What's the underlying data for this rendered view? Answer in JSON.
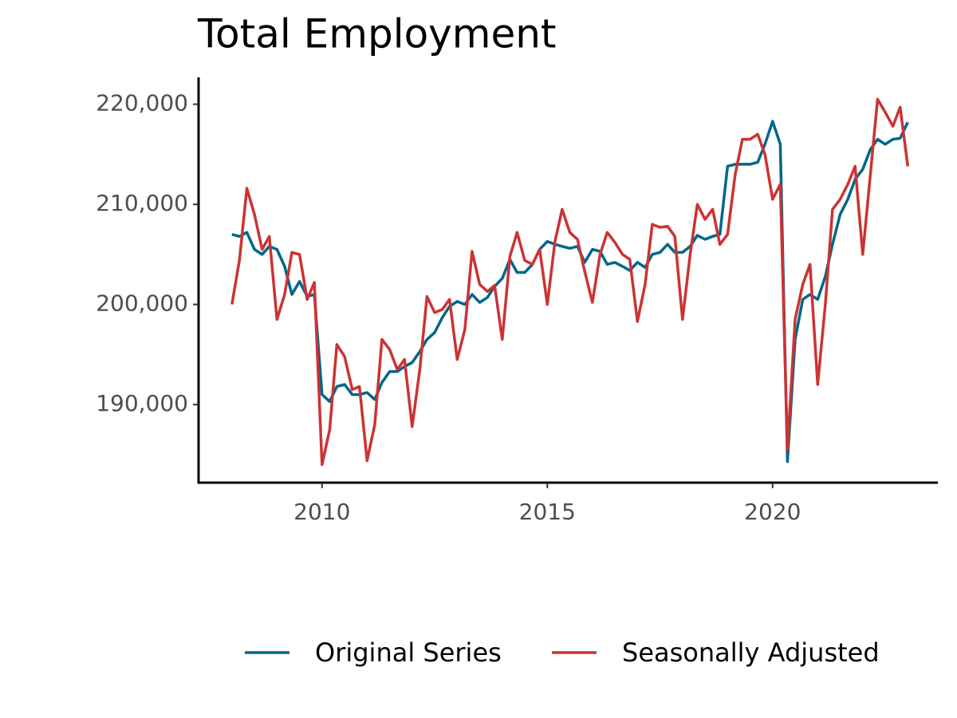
{
  "chart_data": {
    "type": "line",
    "title": "Total Employment",
    "x": [
      2008,
      2008.17,
      2008.33,
      2008.5,
      2008.67,
      2008.83,
      2009,
      2009.17,
      2009.33,
      2009.5,
      2009.67,
      2009.83,
      2010,
      2010.17,
      2010.33,
      2010.5,
      2010.67,
      2010.83,
      2011,
      2011.17,
      2011.33,
      2011.5,
      2011.67,
      2011.83,
      2012,
      2012.17,
      2012.33,
      2012.5,
      2012.67,
      2012.83,
      2013,
      2013.17,
      2013.33,
      2013.5,
      2013.67,
      2013.83,
      2014,
      2014.17,
      2014.33,
      2014.5,
      2014.67,
      2014.83,
      2015,
      2015.17,
      2015.33,
      2015.5,
      2015.67,
      2015.83,
      2016,
      2016.17,
      2016.33,
      2016.5,
      2016.67,
      2016.83,
      2017,
      2017.17,
      2017.33,
      2017.5,
      2017.67,
      2017.83,
      2018,
      2018.17,
      2018.33,
      2018.5,
      2018.67,
      2018.83,
      2019,
      2019.17,
      2019.33,
      2019.5,
      2019.67,
      2019.83,
      2020,
      2020.17,
      2020.33,
      2020.5,
      2020.67,
      2020.83,
      2021,
      2021.17,
      2021.33,
      2021.5,
      2021.67,
      2021.83,
      2022,
      2022.17,
      2022.33,
      2022.5,
      2022.67,
      2022.83,
      2023
    ],
    "series": [
      {
        "name": "Original Series",
        "color": "#00668a",
        "values": [
          207000,
          206800,
          207200,
          205500,
          205000,
          205800,
          205500,
          203800,
          201000,
          202300,
          200800,
          201000,
          191000,
          190300,
          191800,
          192000,
          191000,
          191000,
          191200,
          190500,
          192200,
          193300,
          193300,
          193800,
          194200,
          195300,
          196500,
          197200,
          198700,
          199800,
          200300,
          200000,
          201000,
          200200,
          200700,
          201800,
          202600,
          204500,
          203200,
          203200,
          204000,
          205500,
          206300,
          206000,
          205800,
          205600,
          205800,
          204200,
          205500,
          205300,
          204000,
          204200,
          203800,
          203400,
          204200,
          203700,
          205000,
          205200,
          206000,
          205200,
          205200,
          205800,
          206900,
          206500,
          206800,
          207000,
          213800,
          214000,
          214000,
          214000,
          214200,
          216000,
          218300,
          216000,
          184300,
          196500,
          200500,
          201000,
          200500,
          202800,
          206000,
          209000,
          210500,
          212500,
          213500,
          215500,
          216500,
          216000,
          216500,
          216600,
          218200
        ]
      },
      {
        "name": "Seasonally Adjusted",
        "color": "#cc3333",
        "values": [
          200000,
          204500,
          211600,
          209000,
          205500,
          206800,
          198500,
          201000,
          205200,
          205000,
          200500,
          202200,
          184000,
          187500,
          196000,
          194800,
          191500,
          191800,
          184400,
          188000,
          196500,
          195500,
          193500,
          194500,
          187800,
          193500,
          200800,
          199200,
          199500,
          200500,
          194500,
          197500,
          205300,
          202000,
          201300,
          201900,
          196500,
          204800,
          207200,
          204400,
          204000,
          205500,
          200000,
          206300,
          209500,
          207200,
          206500,
          203300,
          200200,
          205000,
          207200,
          206200,
          205000,
          204500,
          198300,
          202000,
          208000,
          207700,
          207800,
          206800,
          198500,
          205000,
          210000,
          208500,
          209500,
          206000,
          207000,
          213000,
          216500,
          216500,
          217000,
          215000,
          210500,
          212000,
          185500,
          198500,
          202000,
          204000,
          192000,
          200000,
          209500,
          210500,
          212000,
          213800,
          205000,
          213000,
          220500,
          219200,
          217800,
          219700,
          213800
        ]
      }
    ],
    "xlim": [
      2007.26,
      2023.65
    ],
    "xticks": [
      2010,
      2015,
      2020
    ],
    "ylim": [
      182200,
      222600
    ],
    "yticks": [
      {
        "value": 190000,
        "label": "190,000"
      },
      {
        "value": 200000,
        "label": "200,000"
      },
      {
        "value": 210000,
        "label": "210,000"
      },
      {
        "value": 220000,
        "label": "220,000"
      }
    ],
    "grid": false,
    "legend": "bottom"
  }
}
